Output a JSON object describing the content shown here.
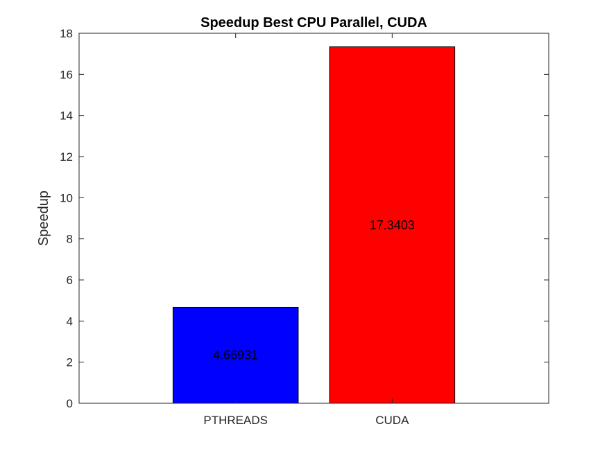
{
  "chart_data": {
    "type": "bar",
    "title": "Speedup Best CPU Parallel, CUDA",
    "xlabel": "",
    "ylabel": "Speedup",
    "categories": [
      "PTHREADS",
      "CUDA"
    ],
    "values": [
      4.66931,
      17.3403
    ],
    "value_labels": [
      "4.66931",
      "17.3403"
    ],
    "bar_colors": [
      "#0000ff",
      "#ff0000"
    ],
    "ylim": [
      0,
      18
    ],
    "yticks": [
      0,
      2,
      4,
      6,
      8,
      10,
      12,
      14,
      16,
      18
    ],
    "xlim": [
      0,
      3
    ],
    "grid": false,
    "legend": "none"
  }
}
